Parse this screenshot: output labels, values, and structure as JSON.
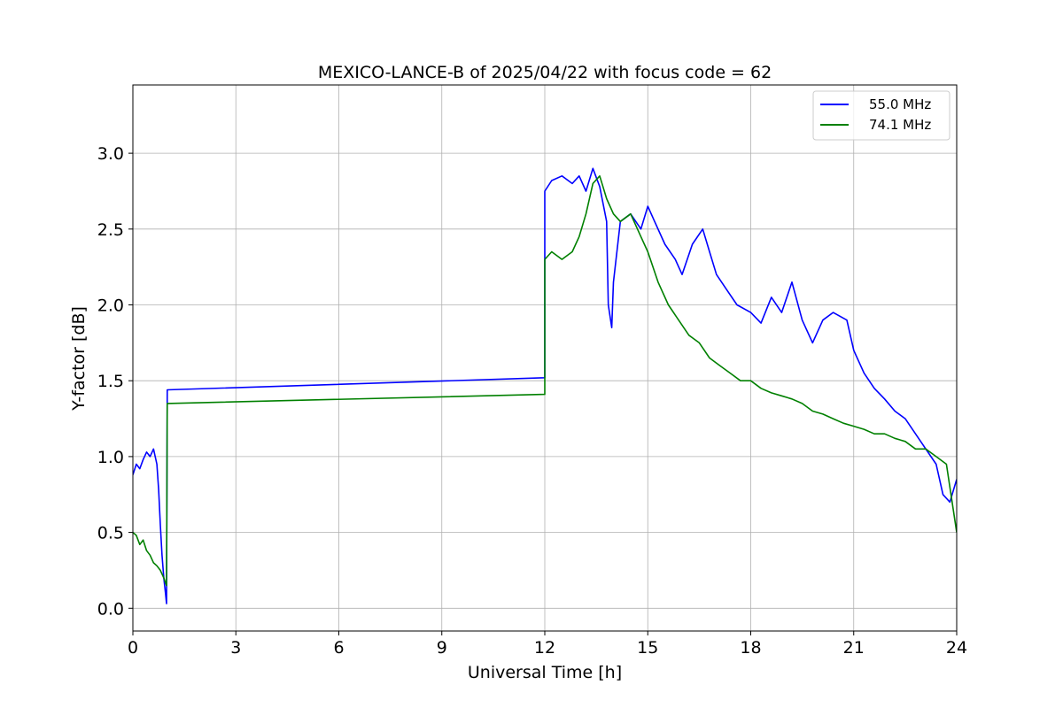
{
  "chart_data": {
    "type": "line",
    "title": "MEXICO-LANCE-B of 2025/04/22 with focus code = 62",
    "xlabel": "Universal Time [h]",
    "ylabel": "Y-factor [dB]",
    "xlim": [
      0,
      24
    ],
    "ylim": [
      -0.15,
      3.45
    ],
    "xticks": [
      0,
      3,
      6,
      9,
      12,
      15,
      18,
      21,
      24
    ],
    "xtick_labels": [
      "0",
      "3",
      "6",
      "9",
      "12",
      "15",
      "18",
      "21",
      "24"
    ],
    "yticks": [
      0.0,
      0.5,
      1.0,
      1.5,
      2.0,
      2.5,
      3.0
    ],
    "ytick_labels": [
      "0.0",
      "0.5",
      "1.0",
      "1.5",
      "2.0",
      "2.5",
      "3.0"
    ],
    "grid": true,
    "legend_position": "top-right",
    "series": [
      {
        "name": "55.0 MHz",
        "color": "#0000ff",
        "points": [
          [
            0.0,
            0.88
          ],
          [
            0.1,
            0.95
          ],
          [
            0.2,
            0.92
          ],
          [
            0.3,
            0.98
          ],
          [
            0.4,
            1.03
          ],
          [
            0.5,
            1.0
          ],
          [
            0.6,
            1.05
          ],
          [
            0.7,
            0.95
          ],
          [
            0.75,
            0.78
          ],
          [
            0.8,
            0.55
          ],
          [
            0.85,
            0.35
          ],
          [
            0.9,
            0.2
          ],
          [
            0.95,
            0.1
          ],
          [
            0.98,
            0.03
          ],
          [
            1.0,
            1.44
          ],
          [
            12.0,
            1.52
          ],
          [
            12.0,
            2.75
          ],
          [
            12.2,
            2.82
          ],
          [
            12.5,
            2.85
          ],
          [
            12.8,
            2.8
          ],
          [
            13.0,
            2.85
          ],
          [
            13.2,
            2.75
          ],
          [
            13.4,
            2.9
          ],
          [
            13.6,
            2.78
          ],
          [
            13.8,
            2.55
          ],
          [
            13.85,
            2.0
          ],
          [
            13.95,
            1.85
          ],
          [
            14.0,
            2.15
          ],
          [
            14.2,
            2.55
          ],
          [
            14.5,
            2.6
          ],
          [
            14.8,
            2.5
          ],
          [
            15.0,
            2.65
          ],
          [
            15.2,
            2.55
          ],
          [
            15.5,
            2.4
          ],
          [
            15.8,
            2.3
          ],
          [
            16.0,
            2.2
          ],
          [
            16.3,
            2.4
          ],
          [
            16.6,
            2.5
          ],
          [
            16.8,
            2.35
          ],
          [
            17.0,
            2.2
          ],
          [
            17.3,
            2.1
          ],
          [
            17.6,
            2.0
          ],
          [
            18.0,
            1.95
          ],
          [
            18.3,
            1.88
          ],
          [
            18.6,
            2.05
          ],
          [
            18.9,
            1.95
          ],
          [
            19.2,
            2.15
          ],
          [
            19.5,
            1.9
          ],
          [
            19.8,
            1.75
          ],
          [
            20.1,
            1.9
          ],
          [
            20.4,
            1.95
          ],
          [
            20.8,
            1.9
          ],
          [
            21.0,
            1.7
          ],
          [
            21.3,
            1.55
          ],
          [
            21.6,
            1.45
          ],
          [
            21.9,
            1.38
          ],
          [
            22.2,
            1.3
          ],
          [
            22.5,
            1.25
          ],
          [
            22.8,
            1.15
          ],
          [
            23.1,
            1.05
          ],
          [
            23.4,
            0.95
          ],
          [
            23.6,
            0.75
          ],
          [
            23.8,
            0.7
          ],
          [
            24.0,
            0.85
          ]
        ]
      },
      {
        "name": "74.1 MHz",
        "color": "#008000",
        "points": [
          [
            0.0,
            0.5
          ],
          [
            0.1,
            0.48
          ],
          [
            0.2,
            0.42
          ],
          [
            0.3,
            0.45
          ],
          [
            0.4,
            0.38
          ],
          [
            0.5,
            0.35
          ],
          [
            0.6,
            0.3
          ],
          [
            0.7,
            0.28
          ],
          [
            0.8,
            0.25
          ],
          [
            0.9,
            0.2
          ],
          [
            0.98,
            0.15
          ],
          [
            1.0,
            1.35
          ],
          [
            12.0,
            1.41
          ],
          [
            12.0,
            2.3
          ],
          [
            12.2,
            2.35
          ],
          [
            12.5,
            2.3
          ],
          [
            12.8,
            2.35
          ],
          [
            13.0,
            2.45
          ],
          [
            13.2,
            2.6
          ],
          [
            13.4,
            2.8
          ],
          [
            13.6,
            2.85
          ],
          [
            13.8,
            2.7
          ],
          [
            14.0,
            2.6
          ],
          [
            14.2,
            2.55
          ],
          [
            14.5,
            2.6
          ],
          [
            14.8,
            2.45
          ],
          [
            15.0,
            2.35
          ],
          [
            15.3,
            2.15
          ],
          [
            15.6,
            2.0
          ],
          [
            15.9,
            1.9
          ],
          [
            16.2,
            1.8
          ],
          [
            16.5,
            1.75
          ],
          [
            16.8,
            1.65
          ],
          [
            17.1,
            1.6
          ],
          [
            17.4,
            1.55
          ],
          [
            17.7,
            1.5
          ],
          [
            18.0,
            1.5
          ],
          [
            18.3,
            1.45
          ],
          [
            18.6,
            1.42
          ],
          [
            18.9,
            1.4
          ],
          [
            19.2,
            1.38
          ],
          [
            19.5,
            1.35
          ],
          [
            19.8,
            1.3
          ],
          [
            20.1,
            1.28
          ],
          [
            20.4,
            1.25
          ],
          [
            20.7,
            1.22
          ],
          [
            21.0,
            1.2
          ],
          [
            21.3,
            1.18
          ],
          [
            21.6,
            1.15
          ],
          [
            21.9,
            1.15
          ],
          [
            22.2,
            1.12
          ],
          [
            22.5,
            1.1
          ],
          [
            22.8,
            1.05
          ],
          [
            23.1,
            1.05
          ],
          [
            23.4,
            1.0
          ],
          [
            23.7,
            0.95
          ],
          [
            24.0,
            0.5
          ]
        ]
      }
    ]
  }
}
